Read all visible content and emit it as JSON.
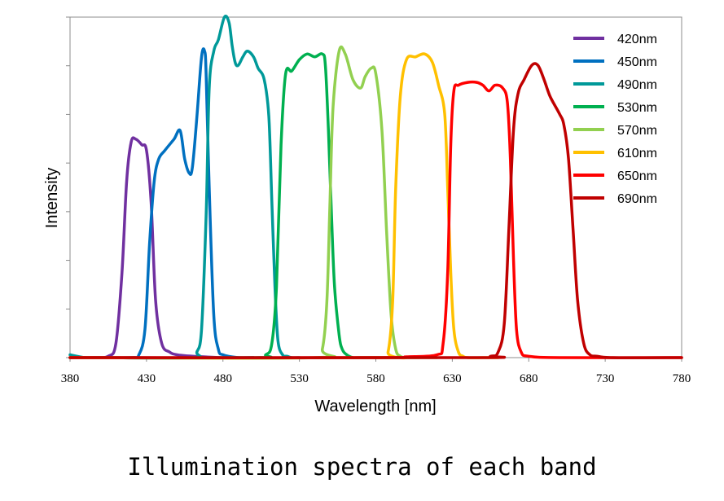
{
  "caption": "Illumination spectra of each band",
  "chart_data": {
    "type": "line",
    "title": "",
    "xlabel": "Wavelength [nm]",
    "ylabel": "Intensity",
    "xlim": [
      380,
      780
    ],
    "ylim": [
      0,
      1.2
    ],
    "x_ticks": [
      380,
      430,
      480,
      530,
      580,
      630,
      680,
      730,
      780
    ],
    "y_tick_count": 7,
    "y_tick_labels_shown": false,
    "grid": false,
    "legend": "top-right",
    "series": [
      {
        "name": "420nm",
        "color": "#7030A0",
        "x": [
          380,
          395,
          405,
          410,
          414,
          417,
          420,
          423,
          427,
          430,
          433,
          436,
          440,
          445,
          450,
          460,
          480,
          500
        ],
        "y": [
          0,
          0,
          0.005,
          0.05,
          0.3,
          0.62,
          0.76,
          0.77,
          0.75,
          0.73,
          0.55,
          0.2,
          0.05,
          0.02,
          0.01,
          0.005,
          0,
          0
        ]
      },
      {
        "name": "450nm",
        "color": "#0070C0",
        "x": [
          380,
          420,
          425,
          429,
          432,
          435,
          438,
          442,
          448,
          452,
          455,
          458,
          460,
          463,
          466,
          468,
          469,
          471,
          474,
          477,
          480,
          490,
          500
        ],
        "y": [
          0,
          0,
          0.01,
          0.1,
          0.4,
          0.62,
          0.7,
          0.73,
          0.77,
          0.8,
          0.7,
          0.65,
          0.67,
          0.85,
          1.06,
          1.08,
          1.0,
          0.6,
          0.15,
          0.03,
          0.01,
          0,
          0
        ]
      },
      {
        "name": "490nm",
        "color": "#009999",
        "x": [
          380,
          390,
          400,
          460,
          463,
          466,
          469,
          471,
          474,
          477,
          481,
          484,
          486,
          488,
          490,
          493,
          496,
          500,
          503,
          507,
          510,
          512,
          514,
          516,
          519,
          522,
          525,
          530
        ],
        "y": [
          0.01,
          0,
          0,
          0,
          0.02,
          0.1,
          0.5,
          0.95,
          1.08,
          1.12,
          1.2,
          1.18,
          1.1,
          1.04,
          1.03,
          1.06,
          1.08,
          1.06,
          1.02,
          0.98,
          0.85,
          0.55,
          0.25,
          0.06,
          0.01,
          0.005,
          0,
          0
        ]
      },
      {
        "name": "530nm",
        "color": "#00B050",
        "x": [
          380,
          500,
          508,
          512,
          515,
          518,
          521,
          525,
          530,
          535,
          540,
          545,
          547,
          549,
          551,
          553,
          556,
          558,
          561,
          565,
          570,
          600
        ],
        "y": [
          0,
          0,
          0.01,
          0.05,
          0.25,
          0.75,
          1.0,
          1.01,
          1.05,
          1.07,
          1.06,
          1.07,
          1.03,
          0.8,
          0.5,
          0.25,
          0.08,
          0.03,
          0.01,
          0,
          0,
          0
        ]
      },
      {
        "name": "570nm",
        "color": "#92D050",
        "x": [
          380,
          540,
          545,
          548,
          550,
          552,
          556,
          560,
          565,
          570,
          573,
          577,
          580,
          584,
          587,
          590,
          593,
          596,
          600,
          610,
          620
        ],
        "y": [
          0,
          0,
          0.03,
          0.2,
          0.55,
          0.88,
          1.08,
          1.07,
          0.98,
          0.95,
          0.99,
          1.02,
          1.0,
          0.8,
          0.45,
          0.15,
          0.03,
          0.005,
          0,
          0,
          0
        ]
      },
      {
        "name": "610nm",
        "color": "#FFC000",
        "x": [
          380,
          583,
          588,
          591,
          593,
          596,
          600,
          606,
          612,
          617,
          621,
          625,
          627,
          629,
          631,
          634,
          637,
          640,
          650,
          660
        ],
        "y": [
          0,
          0,
          0.02,
          0.2,
          0.6,
          0.92,
          1.05,
          1.06,
          1.07,
          1.04,
          0.96,
          0.86,
          0.6,
          0.3,
          0.1,
          0.02,
          0.005,
          0,
          0,
          0
        ]
      },
      {
        "name": "650nm",
        "color": "#FF0000",
        "x": [
          380,
          580,
          600,
          620,
          624,
          627,
          629,
          631,
          634,
          640,
          646,
          650,
          654,
          658,
          663,
          666,
          668,
          670,
          672,
          675,
          680,
          700,
          780
        ],
        "y": [
          0,
          0,
          0.003,
          0.01,
          0.05,
          0.3,
          0.75,
          0.94,
          0.96,
          0.97,
          0.97,
          0.96,
          0.94,
          0.96,
          0.95,
          0.9,
          0.7,
          0.35,
          0.1,
          0.02,
          0.005,
          0,
          0
        ]
      },
      {
        "name": "690nm",
        "color": "#C00000",
        "x": [
          380,
          640,
          655,
          660,
          664,
          667,
          670,
          673,
          677,
          682,
          686,
          690,
          694,
          700,
          703,
          706,
          709,
          712,
          716,
          720,
          725,
          735,
          780
        ],
        "y": [
          0,
          0,
          0.005,
          0.02,
          0.12,
          0.45,
          0.8,
          0.93,
          0.98,
          1.03,
          1.03,
          0.98,
          0.92,
          0.86,
          0.82,
          0.7,
          0.45,
          0.2,
          0.05,
          0.01,
          0.005,
          0,
          0
        ]
      }
    ]
  }
}
